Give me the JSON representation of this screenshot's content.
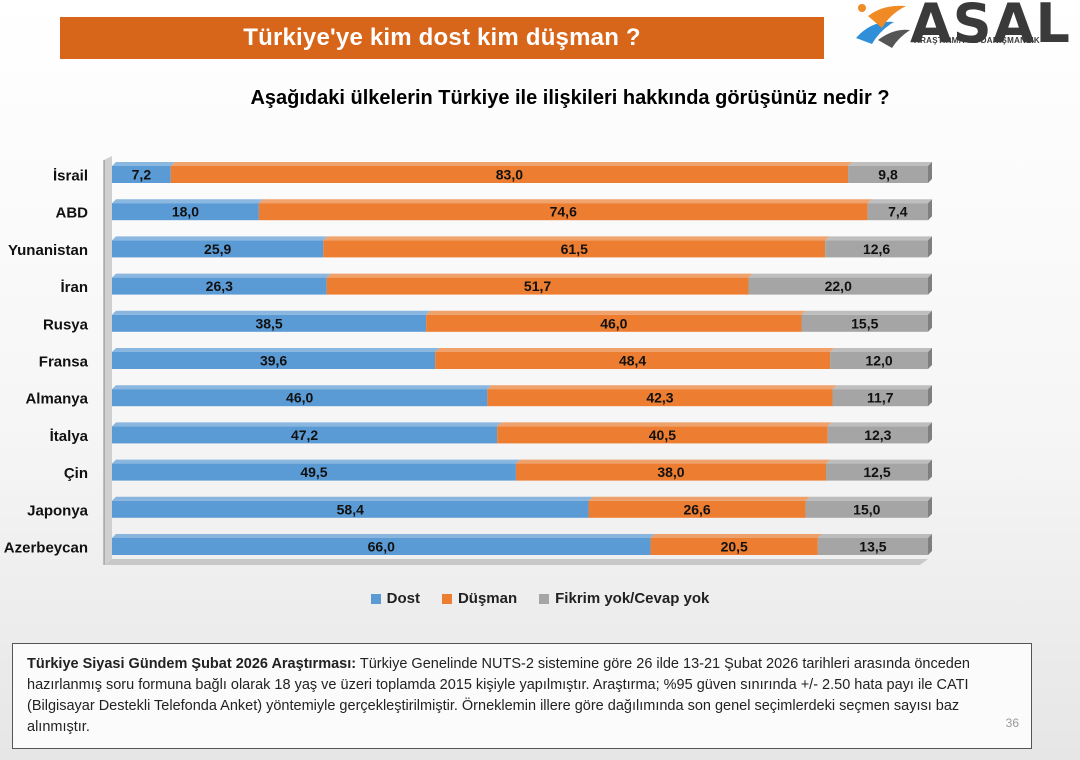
{
  "header": {
    "title": "Türkiye'ye kim dost kim düşman ?",
    "logo_text": "ASAL",
    "logo_subtext": "ARAŞTIRMA VE DANIŞMANLIK"
  },
  "colors": {
    "dost": "#5b9bd5",
    "dusman": "#ed7d31",
    "fikrim_yok": "#a5a5a5",
    "title_bar": "#d8661a"
  },
  "chart_data": {
    "type": "bar",
    "orientation": "horizontal",
    "stacked": true,
    "title": "Aşağıdaki ülkelerin Türkiye ile ilişkileri hakkında görüşünüz nedir ?",
    "categories": [
      "İsrail",
      "ABD",
      "Yunanistan",
      "İran",
      "Rusya",
      "Fransa",
      "Almanya",
      "İtalya",
      "Çin",
      "Japonya",
      "Azerbeycan"
    ],
    "series": [
      {
        "name": "Dost",
        "values": [
          7.2,
          18.0,
          25.9,
          26.3,
          38.5,
          39.6,
          46.0,
          47.2,
          49.5,
          58.4,
          66.0
        ]
      },
      {
        "name": "Düşman",
        "values": [
          83.0,
          74.6,
          61.5,
          51.7,
          46.0,
          48.4,
          42.3,
          40.5,
          38.0,
          26.6,
          20.5
        ]
      },
      {
        "name": "Fikrim yok/Cevap yok",
        "values": [
          9.8,
          7.4,
          12.6,
          22.0,
          15.5,
          12.0,
          11.7,
          12.3,
          12.5,
          15.0,
          13.5
        ]
      }
    ],
    "xlim": [
      0,
      100
    ],
    "legend_position": "bottom",
    "grid": false
  },
  "footnote": {
    "bold": "Türkiye Siyasi Gündem Şubat 2026 Araştırması:",
    "text": " Türkiye Genelinde NUTS-2 sistemine göre 26 ilde 13-21 Şubat 2026 tarihleri arasında önceden hazırlanmış soru formuna bağlı olarak 18 yaş ve üzeri toplamda 2015 kişiyle yapılmıştır. Araştırma; %95 güven sınırında +/- 2.50 hata payı ile CATI (Bilgisayar Destekli Telefonda Anket) yöntemiyle gerçekleştirilmiştir. Örneklemin illere göre dağılımında son genel seçimlerdeki seçmen sayısı baz alınmıştır.",
    "page_number": "36"
  }
}
